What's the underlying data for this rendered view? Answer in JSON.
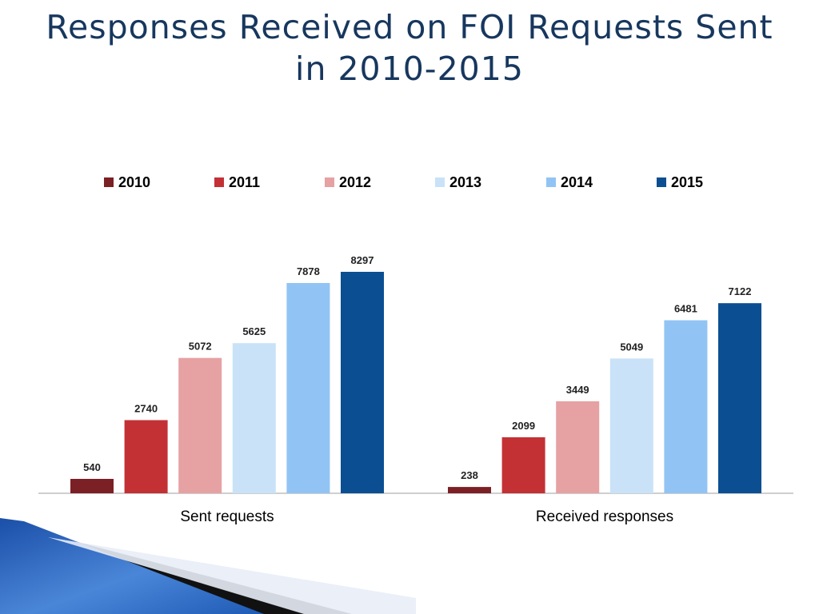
{
  "title_lines": [
    "Responses Received on FOI Requests Sent",
    "in 2010-2015"
  ],
  "chart_data": {
    "type": "bar",
    "title": "Responses Received on FOI Requests Sent in 2010-2015",
    "categories": [
      "Sent requests",
      "Received responses"
    ],
    "series": [
      {
        "name": "2010",
        "color": "#7b2024",
        "values": [
          540,
          238
        ]
      },
      {
        "name": "2011",
        "color": "#c33135",
        "values": [
          2740,
          2099
        ]
      },
      {
        "name": "2012",
        "color": "#e6a1a3",
        "values": [
          5072,
          3449
        ]
      },
      {
        "name": "2013",
        "color": "#c9e2f7",
        "values": [
          5625,
          5049
        ]
      },
      {
        "name": "2014",
        "color": "#91c4f4",
        "values": [
          7878,
          6481
        ]
      },
      {
        "name": "2015",
        "color": "#0b4f92",
        "values": [
          8297,
          7122
        ]
      }
    ],
    "xlabel": "",
    "ylabel": "",
    "ylim": [
      0,
      9000
    ],
    "grid": false,
    "legend_position": "top",
    "data_labels": true
  },
  "colors": {
    "title": "#17375e",
    "axis": "#bfbfbf"
  }
}
